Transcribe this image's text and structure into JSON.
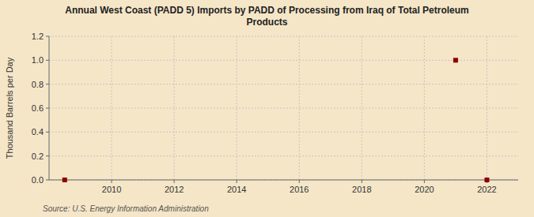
{
  "chart_data": {
    "type": "scatter",
    "title": "Annual West Coast (PADD 5) Imports by PADD of Processing from Iraq of Total Petroleum\nProducts",
    "y_label": "Thousand Barrels per Day",
    "annotations": [
      "Source: U.S. Energy Information Administration"
    ],
    "x": [
      2008.5,
      2021.0,
      2022.0
    ],
    "values": [
      0.0,
      1.0,
      0.0
    ],
    "color": "#8b0000",
    "marker": "square",
    "xlim": [
      2008.0,
      2023.0
    ],
    "ylim": [
      0.0,
      1.2
    ],
    "xticks": [
      2010,
      2012,
      2014,
      2016,
      2018,
      2020,
      2022
    ],
    "yticks": [
      {
        "value": 0.0,
        "label": "0.0"
      },
      0.2,
      0.4,
      0.6,
      0.8,
      {
        "value": 1.0,
        "label": "1.0"
      },
      1.2
    ],
    "grid": true
  }
}
